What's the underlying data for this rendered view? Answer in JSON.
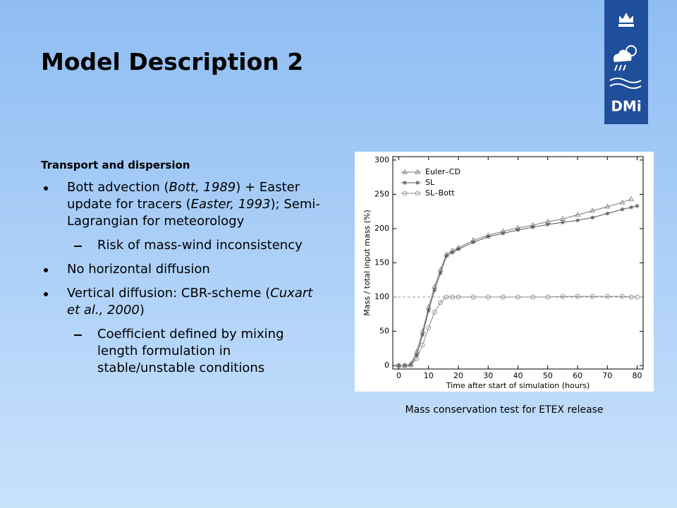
{
  "slide": {
    "title": "Model Description 2",
    "logo_text": "DMi",
    "subheading": "Transport and dispersion",
    "items": [
      {
        "level": 1,
        "parts": [
          "Bott advection (",
          {
            "em": "Bott, 1989"
          },
          ") + Easter update for tracers (",
          {
            "em": "Easter, 1993"
          },
          "); Semi-Lagrangian for meteorology"
        ]
      },
      {
        "level": 2,
        "parts": [
          "Risk of mass-wind inconsistency"
        ]
      },
      {
        "level": 1,
        "parts": [
          "No horizontal diffusion"
        ]
      },
      {
        "level": 1,
        "parts": [
          "Vertical diffusion: CBR-scheme (",
          {
            "em": "Cuxart et al., 2000"
          },
          ")"
        ]
      },
      {
        "level": 2,
        "parts": [
          "Coefficient defined by mixing length formulation in stable/unstable conditions"
        ]
      }
    ],
    "caption": "Mass conservation test for ETEX release"
  },
  "chart_data": {
    "type": "line",
    "x_label": "Time after start of simulation (hours)",
    "y_label": "Mass / total input mass (%)",
    "x": [
      0,
      2,
      4,
      6,
      8,
      10,
      12,
      14,
      16,
      18,
      20,
      25,
      30,
      35,
      40,
      45,
      50,
      55,
      60,
      65,
      70,
      75,
      78,
      80
    ],
    "series": [
      {
        "name": "Euler–CD",
        "color": "#777777",
        "marker": "triangle",
        "values": [
          0,
          0,
          2,
          20,
          50,
          85,
          115,
          140,
          162,
          168,
          172,
          183,
          190,
          196,
          201,
          205,
          210,
          214,
          220,
          226,
          232,
          238,
          243,
          null
        ]
      },
      {
        "name": "SL",
        "color": "#555555",
        "marker": "star",
        "values": [
          0,
          0,
          1,
          15,
          45,
          80,
          110,
          135,
          160,
          165,
          170,
          180,
          188,
          193,
          198,
          202,
          206,
          209,
          212,
          216,
          222,
          228,
          231,
          233
        ]
      },
      {
        "name": "SL–Bott",
        "color": "#888888",
        "marker": "circle",
        "values": [
          0,
          0,
          0,
          10,
          30,
          55,
          78,
          92,
          100,
          100,
          100,
          100,
          100,
          100,
          100,
          100,
          100,
          101,
          101,
          101,
          101,
          101,
          100,
          100
        ]
      }
    ],
    "hline": 100,
    "xlim": [
      -2,
      82
    ],
    "ylim": [
      -5,
      305
    ],
    "xticks": [
      0,
      10,
      20,
      30,
      40,
      50,
      60,
      70,
      80
    ],
    "yticks": [
      0,
      50,
      100,
      150,
      200,
      250,
      300
    ]
  }
}
